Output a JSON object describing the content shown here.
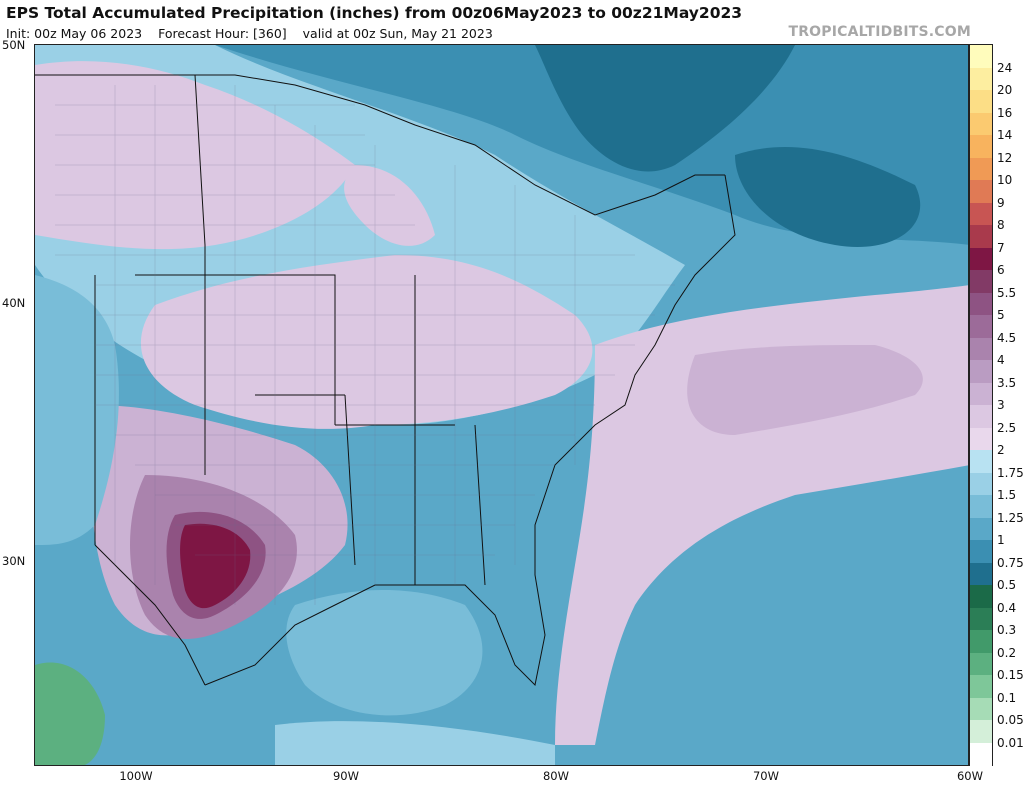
{
  "header": {
    "title": "EPS Total Accumulated Precipitation (inches) from 00z06May2023 to 00z21May2023",
    "init": "Init: 00z May 06 2023",
    "forecast_hour": "Forecast Hour: [360]",
    "valid": "valid at 00z Sun, May 21 2023",
    "brand": "TROPICALTIDBITS.COM"
  },
  "map": {
    "lat_labels": [
      "50N",
      "40N",
      "30N"
    ],
    "lon_labels": [
      "100W",
      "90W",
      "80W",
      "70W",
      "60W"
    ]
  },
  "colorbar": {
    "levels": [
      {
        "label": "24",
        "color": "#fffcbc"
      },
      {
        "label": "20",
        "color": "#fdeea0"
      },
      {
        "label": "16",
        "color": "#fcde86"
      },
      {
        "label": "14",
        "color": "#fbca70"
      },
      {
        "label": "12",
        "color": "#f8b35e"
      },
      {
        "label": "10",
        "color": "#f09a55"
      },
      {
        "label": "9",
        "color": "#e07a55"
      },
      {
        "label": "8",
        "color": "#c85553"
      },
      {
        "label": "7",
        "color": "#a93a4c"
      },
      {
        "label": "6",
        "color": "#7e1644"
      },
      {
        "label": "5.5",
        "color": "#823a66"
      },
      {
        "label": "5",
        "color": "#8e5383"
      },
      {
        "label": "4.5",
        "color": "#9c6b99"
      },
      {
        "label": "4",
        "color": "#aa83ad"
      },
      {
        "label": "3.5",
        "color": "#ba9cc2"
      },
      {
        "label": "3",
        "color": "#cbb2d3"
      },
      {
        "label": "2.5",
        "color": "#dcc8e2"
      },
      {
        "label": "2",
        "color": "#e9d8ec"
      },
      {
        "label": "1.75",
        "color": "#b8e2f2"
      },
      {
        "label": "1.5",
        "color": "#9ad0e6"
      },
      {
        "label": "1.25",
        "color": "#79bdd8"
      },
      {
        "label": "1",
        "color": "#5aa8c8"
      },
      {
        "label": "0.75",
        "color": "#3b8fb2"
      },
      {
        "label": "0.5",
        "color": "#1f6f8e"
      },
      {
        "label": "0.4",
        "color": "#1b6a48"
      },
      {
        "label": "0.3",
        "color": "#2b7e56"
      },
      {
        "label": "0.2",
        "color": "#419a6a"
      },
      {
        "label": "0.15",
        "color": "#5cb080"
      },
      {
        "label": "0.1",
        "color": "#7ec799"
      },
      {
        "label": "0.05",
        "color": "#a6dcb6"
      },
      {
        "label": "0.01",
        "color": "#d4efd9"
      },
      {
        "label": "",
        "color": "#ffffff"
      }
    ]
  }
}
